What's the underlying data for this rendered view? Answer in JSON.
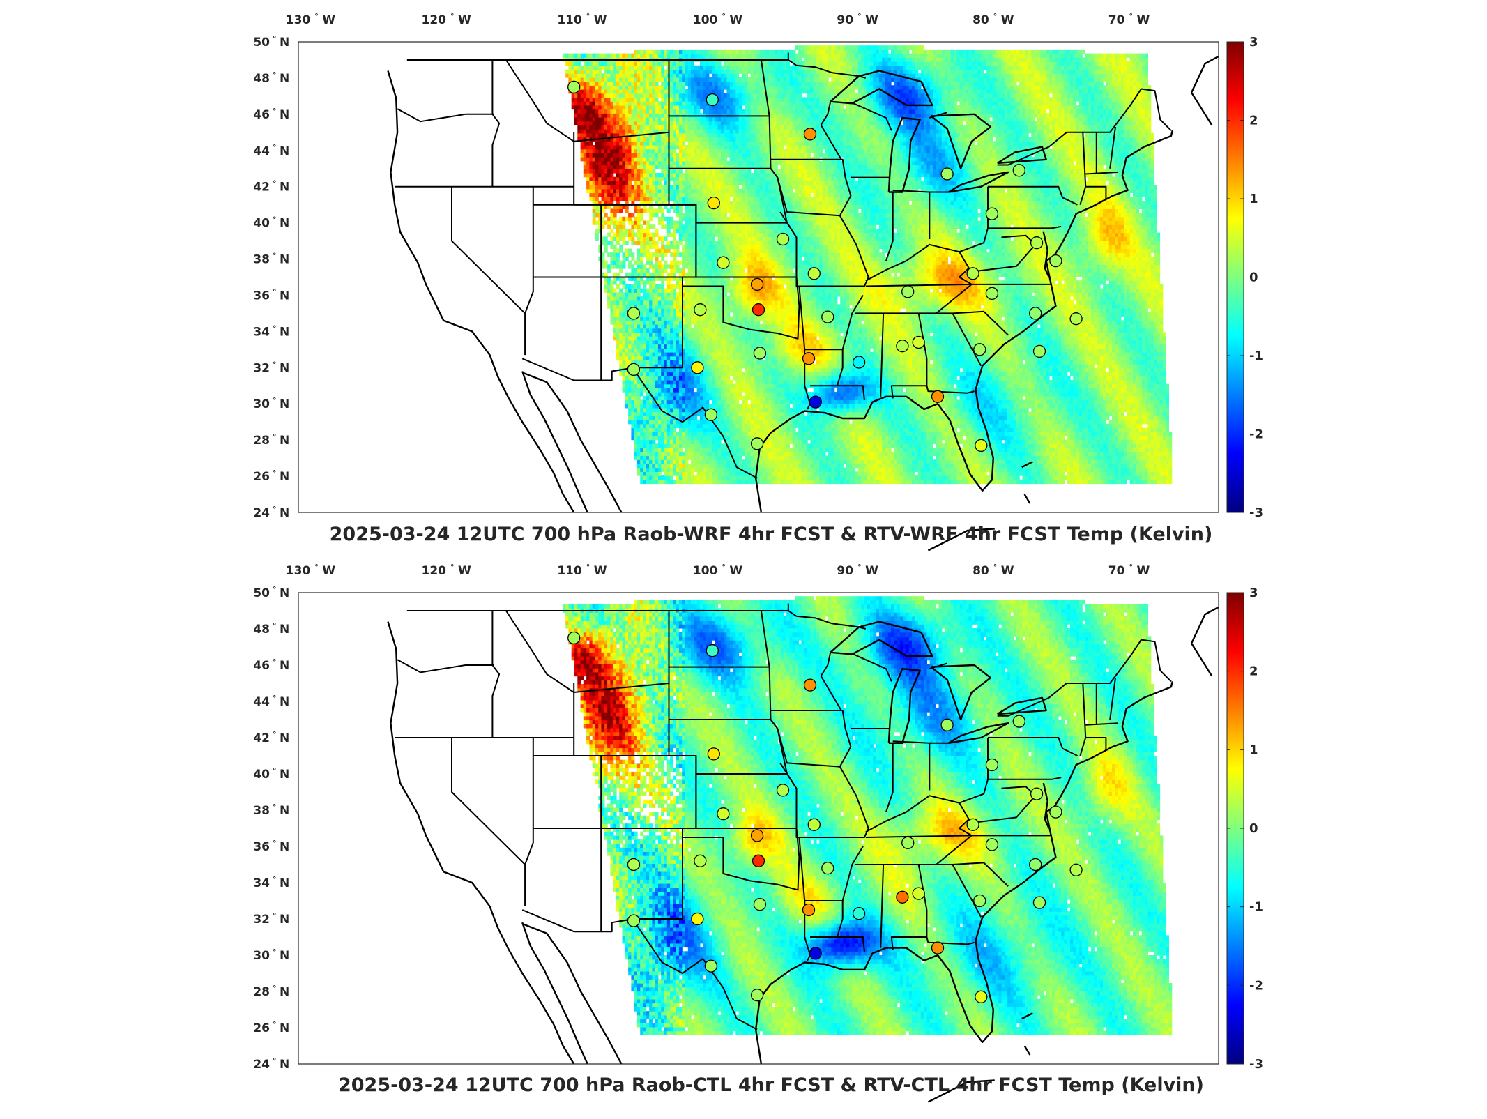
{
  "panels": [
    {
      "id": "top",
      "title": "2025-03-24 12UTC 700 hPa Raob-WRF 4hr FCST & RTV-WRF 4hr FCST Temp (Kelvin)"
    },
    {
      "id": "bottom",
      "title": "2025-03-24 12UTC 700 hPa Raob-CTL 4hr FCST & RTV-CTL 4hr FCST Temp (Kelvin)"
    }
  ],
  "map": {
    "lon_ticks": [
      {
        "label": "130",
        "suffix": "W",
        "value": -130
      },
      {
        "label": "120",
        "suffix": "W",
        "value": -120
      },
      {
        "label": "110",
        "suffix": "W",
        "value": -110
      },
      {
        "label": "100",
        "suffix": "W",
        "value": -100
      },
      {
        "label": "90",
        "suffix": "W",
        "value": -90
      },
      {
        "label": "80",
        "suffix": "W",
        "value": -80
      },
      {
        "label": "70",
        "suffix": "W",
        "value": -70
      }
    ],
    "lat_ticks": [
      {
        "label": "50",
        "suffix": "N",
        "value": 50
      },
      {
        "label": "48",
        "suffix": "N",
        "value": 48
      },
      {
        "label": "46",
        "suffix": "N",
        "value": 46
      },
      {
        "label": "44",
        "suffix": "N",
        "value": 44
      },
      {
        "label": "42",
        "suffix": "N",
        "value": 42
      },
      {
        "label": "40",
        "suffix": "N",
        "value": 40
      },
      {
        "label": "38",
        "suffix": "N",
        "value": 38
      },
      {
        "label": "36",
        "suffix": "N",
        "value": 36
      },
      {
        "label": "34",
        "suffix": "N",
        "value": 34
      },
      {
        "label": "32",
        "suffix": "N",
        "value": 32
      },
      {
        "label": "30",
        "suffix": "N",
        "value": 30
      },
      {
        "label": "28",
        "suffix": "N",
        "value": 28
      },
      {
        "label": "26",
        "suffix": "N",
        "value": 26
      },
      {
        "label": "24",
        "suffix": "N",
        "value": 24
      }
    ],
    "degree_symbol": "°"
  },
  "colorbar": {
    "colormap": "jet",
    "range": [
      -3,
      3
    ],
    "ticks": [
      "3",
      "2",
      "1",
      "0",
      "-1",
      "-2",
      "-3"
    ],
    "colors": [
      "#00007f",
      "#0000ff",
      "#007fff",
      "#00ffff",
      "#7fff7f",
      "#ffff00",
      "#ff7f00",
      "#ff0000",
      "#7f0000"
    ]
  },
  "raob_stations": [
    {
      "lon": -111.0,
      "lat": 47.5,
      "top": 0.2,
      "bottom": 0.2
    },
    {
      "lon": -100.8,
      "lat": 46.8,
      "top": -0.4,
      "bottom": -0.4
    },
    {
      "lon": -93.6,
      "lat": 44.9,
      "top": 1.4,
      "bottom": 1.4
    },
    {
      "lon": -100.7,
      "lat": 41.1,
      "top": 0.9,
      "bottom": 0.9
    },
    {
      "lon": -95.6,
      "lat": 39.1,
      "top": 0.3,
      "bottom": 0.3
    },
    {
      "lon": -100.0,
      "lat": 37.8,
      "top": 0.5,
      "bottom": 0.5
    },
    {
      "lon": -97.5,
      "lat": 36.6,
      "top": 1.3,
      "bottom": 1.3
    },
    {
      "lon": -97.4,
      "lat": 35.2,
      "top": 2.0,
      "bottom": 2.0
    },
    {
      "lon": -93.3,
      "lat": 37.2,
      "top": 0.4,
      "bottom": 0.4
    },
    {
      "lon": -92.3,
      "lat": 34.8,
      "top": 0.2,
      "bottom": 0.2
    },
    {
      "lon": -101.7,
      "lat": 35.2,
      "top": 0.3,
      "bottom": 0.3
    },
    {
      "lon": -106.6,
      "lat": 35.0,
      "top": 0.3,
      "bottom": 0.3
    },
    {
      "lon": -106.6,
      "lat": 31.9,
      "top": 0.2,
      "bottom": 0.2
    },
    {
      "lon": -101.9,
      "lat": 32.0,
      "top": 0.8,
      "bottom": 0.8
    },
    {
      "lon": -97.3,
      "lat": 32.8,
      "top": 0.2,
      "bottom": 0.2
    },
    {
      "lon": -93.7,
      "lat": 32.5,
      "top": 1.4,
      "bottom": 1.4
    },
    {
      "lon": -100.9,
      "lat": 29.4,
      "top": 0.2,
      "bottom": 0.2
    },
    {
      "lon": -97.5,
      "lat": 27.8,
      "top": 0.2,
      "bottom": 0.2
    },
    {
      "lon": -93.2,
      "lat": 30.1,
      "top": -2.4,
      "bottom": -2.4
    },
    {
      "lon": -90.0,
      "lat": 32.3,
      "top": -0.8,
      "bottom": -0.5
    },
    {
      "lon": -86.8,
      "lat": 33.2,
      "top": 0.3,
      "bottom": 1.6
    },
    {
      "lon": -85.6,
      "lat": 33.4,
      "top": 0.5,
      "bottom": 0.5
    },
    {
      "lon": -86.4,
      "lat": 36.2,
      "top": 0.2,
      "bottom": 0.2
    },
    {
      "lon": -81.6,
      "lat": 37.2,
      "top": 0.3,
      "bottom": 0.3
    },
    {
      "lon": -80.2,
      "lat": 36.1,
      "top": 0.2,
      "bottom": 0.2
    },
    {
      "lon": -81.1,
      "lat": 33.0,
      "top": 0.2,
      "bottom": 0.2
    },
    {
      "lon": -84.2,
      "lat": 30.4,
      "top": 1.4,
      "bottom": 1.4
    },
    {
      "lon": -81.0,
      "lat": 27.7,
      "top": 0.6,
      "bottom": 0.6
    },
    {
      "lon": -83.5,
      "lat": 42.7,
      "top": 0.2,
      "bottom": 0.2
    },
    {
      "lon": -80.2,
      "lat": 40.5,
      "top": 0.2,
      "bottom": 0.2
    },
    {
      "lon": -76.9,
      "lat": 38.9,
      "top": 0.3,
      "bottom": 0.3
    },
    {
      "lon": -75.5,
      "lat": 37.9,
      "top": 0.2,
      "bottom": 0.2
    },
    {
      "lon": -78.2,
      "lat": 42.9,
      "top": 0.2,
      "bottom": 0.2
    },
    {
      "lon": -74.0,
      "lat": 34.7,
      "top": 0.3,
      "bottom": 0.3
    },
    {
      "lon": -76.7,
      "lat": 32.9,
      "top": 0.2,
      "bottom": 0.2
    },
    {
      "lon": -77.0,
      "lat": 35.0,
      "top": 0.1,
      "bottom": 0.1
    }
  ]
}
